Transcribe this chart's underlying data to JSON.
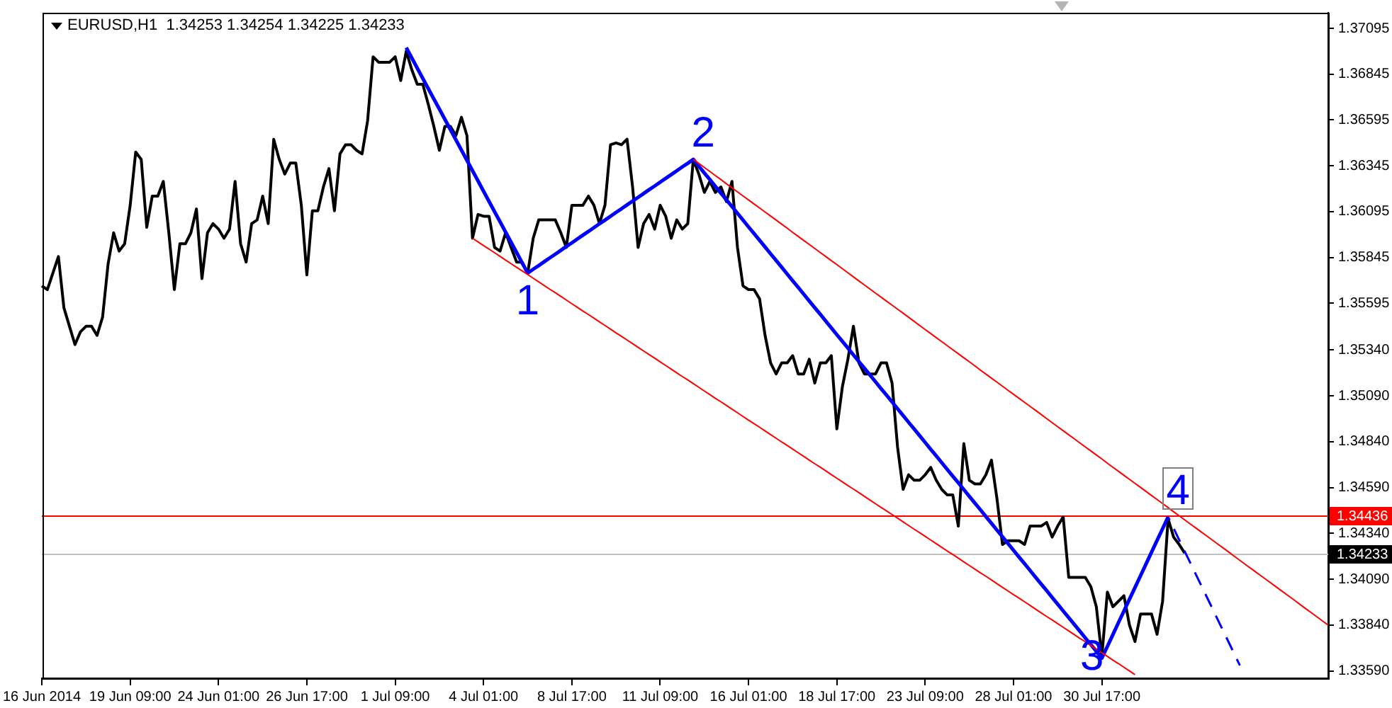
{
  "chart_data": {
    "type": "line",
    "title": "EURUSD,H1  1.34253 1.34254 1.34225 1.34233",
    "categories": [
      "16 Jun 2014",
      null,
      null,
      null,
      null,
      null,
      null,
      null,
      null,
      null,
      null,
      null,
      null,
      null,
      null,
      null,
      "19 Jun 09:00",
      null,
      null,
      null,
      null,
      null,
      null,
      null,
      null,
      null,
      null,
      null,
      null,
      null,
      null,
      null,
      "24 Jun 01:00",
      null,
      null,
      null,
      null,
      null,
      null,
      null,
      null,
      null,
      null,
      null,
      null,
      null,
      null,
      null,
      "26 Jun 17:00",
      null,
      null,
      null,
      null,
      null,
      null,
      null,
      null,
      null,
      null,
      null,
      null,
      null,
      null,
      null,
      "1 Jul 09:00",
      null,
      null,
      null,
      null,
      null,
      null,
      null,
      null,
      null,
      null,
      null,
      null,
      null,
      null,
      null,
      "4 Jul 01:00",
      null,
      null,
      null,
      null,
      null,
      null,
      null,
      null,
      null,
      null,
      null,
      null,
      null,
      null,
      null,
      "8 Jul 17:00",
      null,
      null,
      null,
      null,
      null,
      null,
      null,
      null,
      null,
      null,
      null,
      null,
      null,
      null,
      null,
      "11 Jul 09:00",
      null,
      null,
      null,
      null,
      null,
      null,
      null,
      null,
      null,
      null,
      null,
      null,
      null,
      null,
      null,
      "16 Jul 01:00",
      null,
      null,
      null,
      null,
      null,
      null,
      null,
      null,
      null,
      null,
      null,
      null,
      null,
      null,
      null,
      "18 Jul 17:00",
      null,
      null,
      null,
      null,
      null,
      null,
      null,
      null,
      null,
      null,
      null,
      null,
      null,
      null,
      null,
      "23 Jul 09:00",
      null,
      null,
      null,
      null,
      null,
      null,
      null,
      null,
      null,
      null,
      null,
      null,
      null,
      null,
      null,
      "28 Jul 01:00",
      null,
      null,
      null,
      null,
      null,
      null,
      null,
      null,
      null,
      null,
      null,
      null,
      null,
      null,
      null,
      "30 Jul 17:00",
      null,
      null,
      null,
      null,
      null,
      null,
      null,
      null,
      null,
      null,
      null,
      null,
      null,
      null,
      null,
      null,
      null,
      null,
      null,
      null,
      null,
      null,
      null,
      null,
      null,
      null,
      null,
      null,
      null,
      null,
      null,
      null,
      null,
      null,
      null,
      null,
      null,
      null,
      null,
      null,
      null
    ],
    "series": [
      {
        "color": "#000000",
        "values": [
          1.3569,
          1.3567,
          1.3576,
          1.3585,
          1.3557,
          1.3547,
          1.3537,
          1.3544,
          1.3547,
          1.3547,
          1.3542,
          1.3552,
          1.3581,
          1.3598,
          1.3588,
          1.3592,
          1.3613,
          1.3642,
          1.3638,
          1.3601,
          1.3618,
          1.3618,
          1.3626,
          1.3598,
          1.3567,
          1.3592,
          1.3592,
          1.3598,
          1.3611,
          1.3573,
          1.3598,
          1.3603,
          1.36,
          1.3595,
          1.36,
          1.3626,
          1.3592,
          1.3582,
          1.3603,
          1.3605,
          1.3618,
          1.3603,
          1.3649,
          1.3638,
          1.363,
          1.3636,
          1.3636,
          1.3613,
          1.3575,
          1.361,
          1.361,
          1.3623,
          1.3633,
          1.361,
          1.3641,
          1.3646,
          1.3646,
          1.3643,
          1.3641,
          1.3659,
          1.3694,
          1.3691,
          1.3691,
          1.3691,
          1.3694,
          1.3681,
          1.3697,
          1.3687,
          1.3679,
          1.3679,
          1.3668,
          1.3656,
          1.3643,
          1.3656,
          1.3656,
          1.3651,
          1.3661,
          1.3651,
          1.3595,
          1.3608,
          1.3607,
          1.3607,
          1.359,
          1.3588,
          1.3598,
          1.359,
          1.3582,
          1.3582,
          1.3576,
          1.3595,
          1.3605,
          1.3605,
          1.3605,
          1.3605,
          1.3598,
          1.359,
          1.3613,
          1.3613,
          1.3613,
          1.3618,
          1.3613,
          1.3603,
          1.3613,
          1.3646,
          1.3647,
          1.3646,
          1.3649,
          1.3623,
          1.359,
          1.3603,
          1.3608,
          1.36,
          1.3613,
          1.3607,
          1.3595,
          1.3605,
          1.36,
          1.3603,
          1.3638,
          1.363,
          1.362,
          1.3626,
          1.362,
          1.3623,
          1.3615,
          1.3626,
          1.359,
          1.3569,
          1.3567,
          1.3567,
          1.3562,
          1.3542,
          1.3527,
          1.3521,
          1.3527,
          1.3527,
          1.3531,
          1.3521,
          1.3521,
          1.3529,
          1.3516,
          1.3527,
          1.3527,
          1.3531,
          1.3491,
          1.3514,
          1.3529,
          1.3547,
          1.3527,
          1.3521,
          1.3521,
          1.3521,
          1.3527,
          1.3527,
          1.3516,
          1.3481,
          1.3458,
          1.3466,
          1.3463,
          1.3463,
          1.3466,
          1.347,
          1.3463,
          1.3458,
          1.3455,
          1.3455,
          1.3438,
          1.3483,
          1.3463,
          1.3461,
          1.3461,
          1.3466,
          1.3474,
          1.3453,
          1.3428,
          1.343,
          1.343,
          1.343,
          1.3428,
          1.3438,
          1.3438,
          1.3438,
          1.344,
          1.3432,
          1.3438,
          1.3443,
          1.341,
          1.341,
          1.341,
          1.341,
          1.3405,
          1.3394,
          1.3367,
          1.3402,
          1.3394,
          1.3397,
          1.34,
          1.3384,
          1.3375,
          1.339,
          1.339,
          1.339,
          1.3379,
          1.3397,
          1.3442,
          1.3432,
          1.3428,
          1.34233,
          null,
          null,
          null,
          null,
          null,
          null,
          null,
          null,
          null,
          null,
          null,
          null,
          null,
          null,
          null,
          null,
          null,
          null,
          null,
          null,
          null,
          null,
          null,
          null,
          null,
          null
        ]
      },
      {
        "color": "#0000ff",
        "values": [
          null,
          null,
          null,
          null,
          null,
          null,
          null,
          null,
          null,
          null,
          null,
          null,
          null,
          null,
          null,
          null,
          null,
          null,
          null,
          null,
          null,
          null,
          null,
          null,
          null,
          null,
          null,
          null,
          null,
          null,
          null,
          null,
          null,
          null,
          null,
          null,
          null,
          null,
          null,
          null,
          null,
          null,
          null,
          null,
          null,
          null,
          null,
          null,
          null,
          null,
          null,
          null,
          null,
          null,
          null,
          null,
          null,
          null,
          null,
          null,
          null,
          null,
          null,
          null,
          null,
          null,
          1.3699,
          1.36934,
          1.36878,
          1.36822,
          1.36766,
          1.3671,
          1.36655,
          1.36599,
          1.36543,
          1.36487,
          1.36431,
          1.36375,
          1.36319,
          1.36263,
          1.36207,
          1.36151,
          1.36095,
          1.3604,
          1.35984,
          1.35928,
          1.35872,
          1.35816,
          1.3576,
          1.35781,
          1.35801,
          1.35822,
          1.35843,
          1.35863,
          1.35884,
          1.35905,
          1.35925,
          1.35946,
          1.35967,
          1.35987,
          1.36008,
          1.36029,
          1.36049,
          1.3607,
          1.36091,
          1.36111,
          1.36132,
          1.36153,
          1.36173,
          1.36194,
          1.36215,
          1.36235,
          1.36256,
          1.36277,
          1.36297,
          1.36318,
          1.36339,
          1.36359,
          1.3638,
          1.36343,
          1.36306,
          1.3627,
          1.36233,
          1.36196,
          1.36159,
          1.36123,
          1.36086,
          1.36049,
          1.36012,
          1.35976,
          1.35939,
          1.35902,
          1.35865,
          1.35829,
          1.35792,
          1.35755,
          1.35718,
          1.35682,
          1.35645,
          1.35608,
          1.35571,
          1.35535,
          1.35498,
          1.35461,
          1.35424,
          1.35388,
          1.35351,
          1.35314,
          1.35277,
          1.35241,
          1.35204,
          1.35167,
          1.3513,
          1.35094,
          1.35057,
          1.3502,
          1.34983,
          1.34946,
          1.3491,
          1.34873,
          1.34836,
          1.34799,
          1.34763,
          1.34726,
          1.34689,
          1.34652,
          1.34616,
          1.34579,
          1.34542,
          1.34505,
          1.34469,
          1.34432,
          1.34395,
          1.34358,
          1.34322,
          1.34285,
          1.34248,
          1.34211,
          1.34175,
          1.34138,
          1.34101,
          1.34064,
          1.34028,
          1.33991,
          1.33954,
          1.33917,
          1.33881,
          1.33844,
          1.33807,
          1.3377,
          1.33734,
          1.33697,
          1.3366,
          1.33724,
          1.33788,
          1.33853,
          1.33917,
          1.33981,
          1.34045,
          1.34109,
          1.34173,
          1.34238,
          1.34302,
          1.34366,
          1.3443,
          null,
          null,
          null,
          null,
          null,
          null,
          null,
          null,
          null,
          null,
          null,
          null,
          null,
          null,
          null,
          null,
          null,
          null,
          null,
          null,
          null,
          null,
          null,
          null,
          null,
          null,
          null,
          null,
          null
        ]
      },
      {
        "color": "#ff0000",
        "values": [
          null,
          null,
          null,
          null,
          null,
          null,
          null,
          null,
          null,
          null,
          null,
          null,
          null,
          null,
          null,
          null,
          null,
          null,
          null,
          null,
          null,
          null,
          null,
          null,
          null,
          null,
          null,
          null,
          null,
          null,
          null,
          null,
          null,
          null,
          null,
          null,
          null,
          null,
          null,
          null,
          null,
          null,
          null,
          null,
          null,
          null,
          null,
          null,
          null,
          null,
          null,
          null,
          null,
          null,
          null,
          null,
          null,
          null,
          null,
          null,
          null,
          null,
          null,
          null,
          null,
          null,
          null,
          null,
          null,
          null,
          null,
          null,
          null,
          null,
          null,
          null,
          null,
          null,
          1.3595,
          1.3593,
          1.3591,
          1.35891,
          1.35871,
          1.35851,
          1.35831,
          1.35811,
          1.35791,
          1.35772,
          1.35752,
          1.35732,
          1.35712,
          1.35692,
          1.35672,
          1.35653,
          1.35633,
          1.35613,
          1.35593,
          1.35573,
          1.35553,
          1.35534,
          1.35514,
          1.35494,
          1.35474,
          1.35454,
          1.35434,
          1.35415,
          1.35395,
          1.35375,
          1.35355,
          1.35335,
          1.35315,
          1.35296,
          1.35276,
          1.35256,
          1.35236,
          1.35216,
          1.35196,
          1.35177,
          1.35157,
          1.35137,
          1.35117,
          1.35097,
          1.35077,
          1.35058,
          1.35038,
          1.35018,
          1.34998,
          1.34978,
          1.34958,
          1.34939,
          1.34919,
          1.34899,
          1.34879,
          1.34859,
          1.34839,
          1.3482,
          1.348,
          1.3478,
          1.3476,
          1.3474,
          1.3472,
          1.34701,
          1.34681,
          1.34661,
          1.34641,
          1.34621,
          1.34601,
          1.34582,
          1.34562,
          1.34542,
          1.34522,
          1.34502,
          1.34482,
          1.34463,
          1.34443,
          1.34423,
          1.34403,
          1.34383,
          1.34363,
          1.34344,
          1.34324,
          1.34304,
          1.34284,
          1.34264,
          1.34244,
          1.34225,
          1.34205,
          1.34185,
          1.34165,
          1.34145,
          1.34125,
          1.34106,
          1.34086,
          1.34066,
          1.34046,
          1.34026,
          1.34006,
          1.33987,
          1.33967,
          1.33947,
          1.33927,
          1.33907,
          1.33887,
          1.33868,
          1.33848,
          1.33828,
          1.33808,
          1.33788,
          1.33768,
          1.33749,
          1.33729,
          1.33709,
          1.33689,
          1.33669,
          1.33649,
          1.3363,
          1.3361,
          1.3359,
          1.3357,
          null,
          null,
          null,
          null,
          null,
          null,
          null,
          null,
          null,
          null,
          null,
          null,
          null,
          null,
          null,
          null,
          null,
          null,
          null,
          null,
          null,
          null,
          null,
          null,
          null,
          null,
          null,
          null,
          null,
          null,
          null,
          null,
          null,
          null,
          null
        ]
      },
      {
        "color": "#ff0000",
        "values": [
          null,
          null,
          null,
          null,
          null,
          null,
          null,
          null,
          null,
          null,
          null,
          null,
          null,
          null,
          null,
          null,
          null,
          null,
          null,
          null,
          null,
          null,
          null,
          null,
          null,
          null,
          null,
          null,
          null,
          null,
          null,
          null,
          null,
          null,
          null,
          null,
          null,
          null,
          null,
          null,
          null,
          null,
          null,
          null,
          null,
          null,
          null,
          null,
          null,
          null,
          null,
          null,
          null,
          null,
          null,
          null,
          null,
          null,
          null,
          null,
          null,
          null,
          null,
          null,
          null,
          null,
          null,
          null,
          null,
          null,
          null,
          null,
          null,
          null,
          null,
          null,
          null,
          null,
          null,
          null,
          null,
          null,
          null,
          null,
          null,
          null,
          null,
          null,
          null,
          null,
          null,
          null,
          null,
          null,
          null,
          null,
          null,
          null,
          null,
          null,
          null,
          null,
          null,
          null,
          null,
          null,
          null,
          null,
          null,
          null,
          null,
          null,
          null,
          null,
          null,
          null,
          null,
          null,
          1.3638,
          1.36358,
          1.36336,
          1.36314,
          1.36292,
          1.3627,
          1.36247,
          1.36225,
          1.36203,
          1.36181,
          1.36159,
          1.36137,
          1.36115,
          1.36093,
          1.36071,
          1.36049,
          1.36027,
          1.36005,
          1.35982,
          1.3596,
          1.35938,
          1.35916,
          1.35894,
          1.35872,
          1.3585,
          1.35828,
          1.35806,
          1.35784,
          1.35762,
          1.35739,
          1.35717,
          1.35695,
          1.35673,
          1.35651,
          1.35629,
          1.35607,
          1.35585,
          1.35563,
          1.35541,
          1.35519,
          1.35497,
          1.35474,
          1.35452,
          1.3543,
          1.35408,
          1.35386,
          1.35364,
          1.35342,
          1.3532,
          1.35298,
          1.35276,
          1.35254,
          1.35231,
          1.35209,
          1.35187,
          1.35165,
          1.35143,
          1.35121,
          1.35099,
          1.35077,
          1.35055,
          1.35033,
          1.35011,
          1.34989,
          1.34966,
          1.34944,
          1.34922,
          1.349,
          1.34878,
          1.34856,
          1.34834,
          1.34812,
          1.3479,
          1.34768,
          1.34746,
          1.34723,
          1.34701,
          1.34679,
          1.34657,
          1.34635,
          1.34613,
          1.34591,
          1.34569,
          1.34547,
          1.34525,
          1.34503,
          1.34481,
          1.34458,
          1.34436,
          1.34414,
          1.34392,
          1.3437,
          1.34348,
          1.34326,
          1.34304,
          1.34282,
          1.3426,
          1.34238,
          1.34215,
          1.34193,
          1.34171,
          1.34149,
          1.34127,
          1.34105,
          1.34083,
          1.34061,
          1.34039,
          1.34017,
          1.33995,
          1.33973,
          1.3395,
          1.33928,
          1.33906,
          1.33884,
          1.33862,
          1.3384
        ]
      },
      {
        "color": "#0000ff",
        "line_style": "dashed",
        "values": [
          null,
          null,
          null,
          null,
          null,
          null,
          null,
          null,
          null,
          null,
          null,
          null,
          null,
          null,
          null,
          null,
          null,
          null,
          null,
          null,
          null,
          null,
          null,
          null,
          null,
          null,
          null,
          null,
          null,
          null,
          null,
          null,
          null,
          null,
          null,
          null,
          null,
          null,
          null,
          null,
          null,
          null,
          null,
          null,
          null,
          null,
          null,
          null,
          null,
          null,
          null,
          null,
          null,
          null,
          null,
          null,
          null,
          null,
          null,
          null,
          null,
          null,
          null,
          null,
          null,
          null,
          null,
          null,
          null,
          null,
          null,
          null,
          null,
          null,
          null,
          null,
          null,
          null,
          null,
          null,
          null,
          null,
          null,
          null,
          null,
          null,
          null,
          null,
          null,
          null,
          null,
          null,
          null,
          null,
          null,
          null,
          null,
          null,
          null,
          null,
          null,
          null,
          null,
          null,
          null,
          null,
          null,
          null,
          null,
          null,
          null,
          null,
          null,
          null,
          null,
          null,
          null,
          null,
          null,
          null,
          null,
          null,
          null,
          null,
          null,
          null,
          null,
          null,
          null,
          null,
          null,
          null,
          null,
          null,
          null,
          null,
          null,
          null,
          null,
          null,
          null,
          null,
          null,
          null,
          null,
          null,
          null,
          null,
          null,
          null,
          null,
          null,
          null,
          null,
          null,
          null,
          null,
          null,
          null,
          null,
          null,
          null,
          null,
          null,
          null,
          null,
          null,
          null,
          null,
          null,
          null,
          null,
          null,
          null,
          null,
          null,
          null,
          null,
          null,
          null,
          null,
          null,
          null,
          null,
          null,
          null,
          null,
          null,
          null,
          null,
          null,
          null,
          null,
          null,
          null,
          null,
          null,
          null,
          null,
          null,
          null,
          null,
          null,
          null,
          1.3443,
          1.34368,
          1.34305,
          1.34243,
          1.34181,
          1.34118,
          1.34056,
          1.33994,
          1.33932,
          1.33869,
          1.33807,
          1.33745,
          1.33682,
          1.3362,
          null,
          null,
          null,
          null,
          null,
          null,
          null,
          null,
          null,
          null,
          null,
          null,
          null,
          null,
          null,
          null
        ]
      }
    ],
    "ylim": [
      1.3355,
      1.3718
    ],
    "yticks": [
      {
        "value": 1.3359,
        "label": "1.33590"
      },
      {
        "value": 1.3384,
        "label": "1.33840"
      },
      {
        "value": 1.3409,
        "label": "1.34090"
      },
      {
        "value": 1.3434,
        "label": "1.34340"
      },
      {
        "value": 1.3459,
        "label": "1.34590"
      },
      {
        "value": 1.3484,
        "label": "1.34840"
      },
      {
        "value": 1.3509,
        "label": "1.35090"
      },
      {
        "value": 1.3534,
        "label": "1.35340"
      },
      1.35595,
      1.35845,
      1.36095,
      1.36345,
      1.36595,
      1.36845,
      1.37095
    ],
    "ref_lines": [
      {
        "axis": "y",
        "value": 1.34436,
        "label": "1.34436",
        "color": "#ff0000"
      },
      {
        "axis": "y",
        "value": 1.34233,
        "label": "1.34233",
        "color": "#c0c0c0"
      }
    ],
    "annotations": [
      {
        "text": "1",
        "y": 1.3576
      },
      {
        "text": "2",
        "y": 1.3638
      },
      {
        "text": "3",
        "y": 1.3366
      },
      {
        "text": "4",
        "y": 1.3443
      }
    ]
  }
}
